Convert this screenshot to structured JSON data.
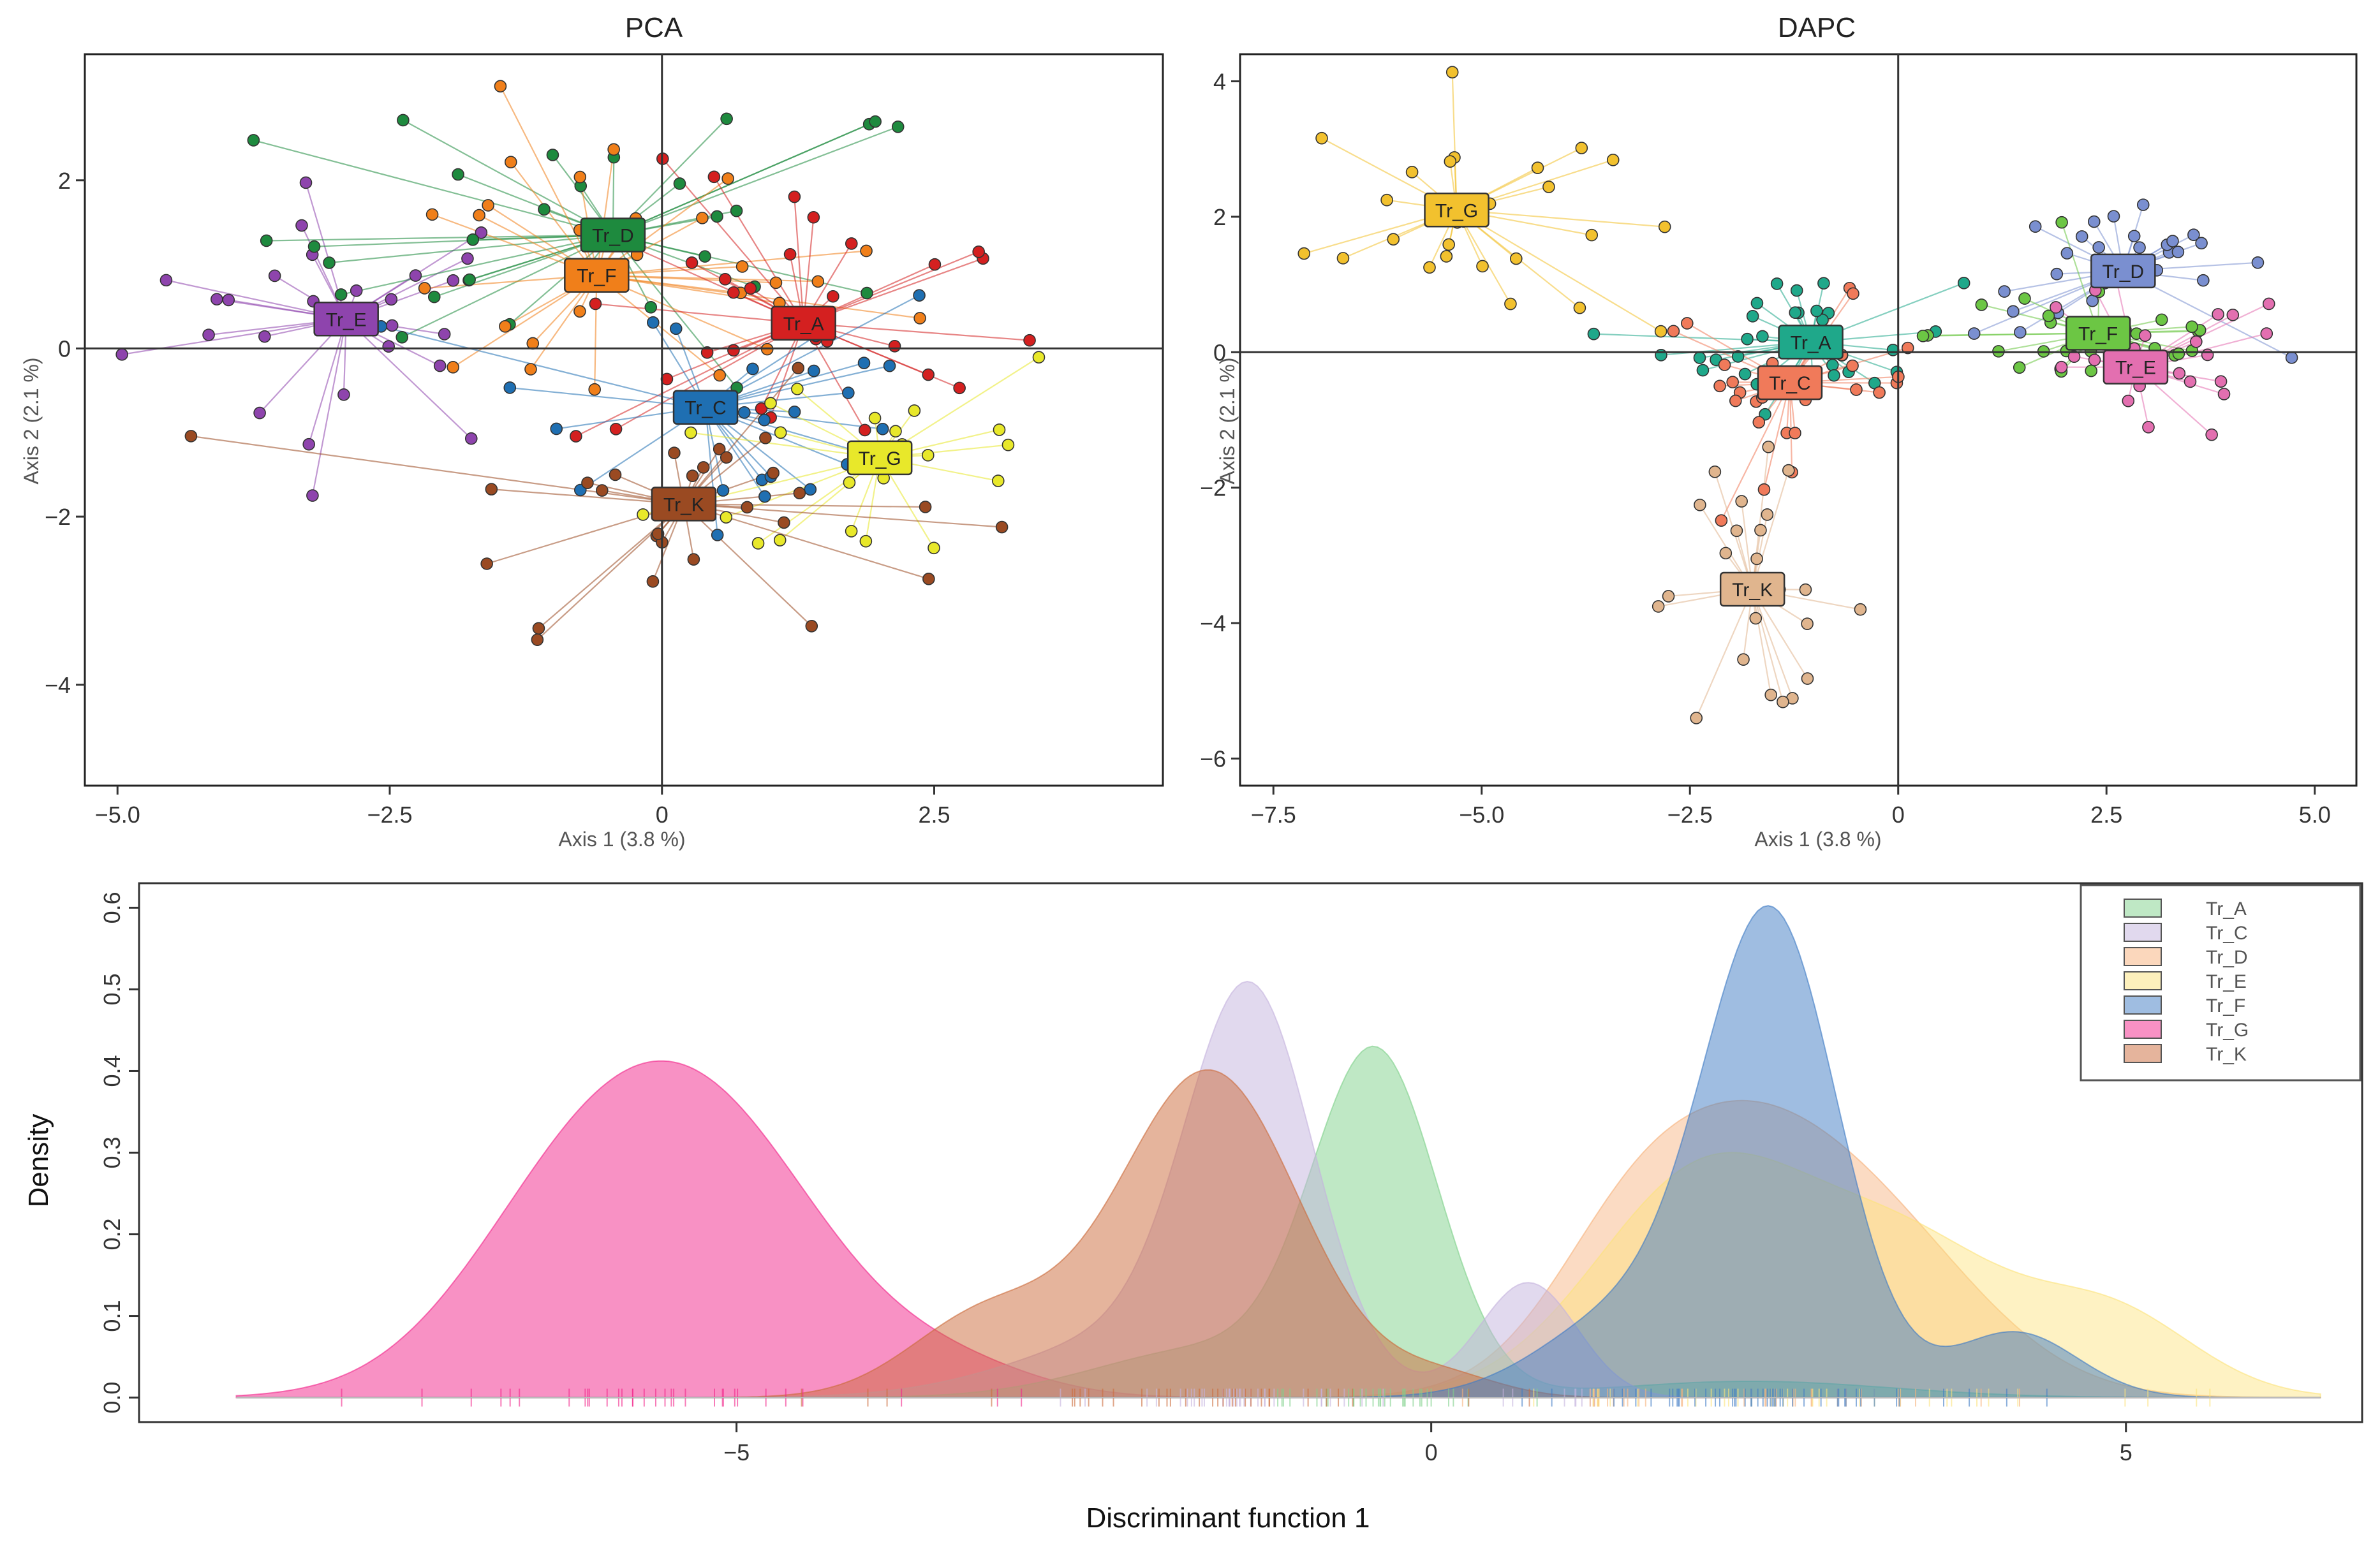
{
  "chart_data": [
    {
      "type": "scatter",
      "title": "PCA",
      "xlabel": "Axis 1 (3.8 %)",
      "ylabel": "Axis 2 (2.1 %)",
      "xlim": [
        -5.3,
        4.6
      ],
      "ylim": [
        -5.2,
        3.5
      ],
      "xticks": [
        -5.0,
        -2.5,
        0,
        2.5
      ],
      "xtick_labels": [
        "−5.0",
        "−2.5",
        "0",
        "2.5"
      ],
      "yticks": [
        2,
        0,
        -2,
        -4
      ],
      "ytick_labels": [
        "2",
        "0",
        "−2",
        "−4"
      ],
      "groups": [
        {
          "name": "Tr_E",
          "label": "Tr_E",
          "color": "#8e44ad",
          "centroid": [
            -2.9,
            0.35
          ],
          "n": 28,
          "spread": [
            1.0,
            0.8
          ]
        },
        {
          "name": "Tr_D",
          "label": "Tr_D",
          "color": "#1e8a3e",
          "centroid": [
            -0.45,
            1.35
          ],
          "n": 30,
          "spread": [
            1.6,
            0.9
          ]
        },
        {
          "name": "Tr_F",
          "label": "Tr_F",
          "color": "#f07f1a",
          "centroid": [
            -0.6,
            0.87
          ],
          "n": 30,
          "spread": [
            1.4,
            0.9
          ]
        },
        {
          "name": "Tr_A",
          "label": "Tr_A",
          "color": "#d42020",
          "centroid": [
            1.3,
            0.3
          ],
          "n": 30,
          "spread": [
            1.1,
            0.9
          ]
        },
        {
          "name": "Tr_C",
          "label": "Tr_C",
          "color": "#1f6fb2",
          "centroid": [
            0.4,
            -0.7
          ],
          "n": 25,
          "spread": [
            1.3,
            0.9
          ]
        },
        {
          "name": "Tr_G",
          "label": "Tr_G",
          "color": "#e8e82a",
          "centroid": [
            2.0,
            -1.3
          ],
          "n": 25,
          "spread": [
            1.0,
            0.8
          ]
        },
        {
          "name": "Tr_K",
          "label": "Tr_K",
          "color": "#9a4a22",
          "centroid": [
            0.2,
            -1.85
          ],
          "n": 28,
          "spread": [
            1.3,
            0.7
          ]
        }
      ]
    },
    {
      "type": "scatter",
      "title": "DAPC",
      "xlabel": "Axis 1 (3.8 %)",
      "ylabel": "Axis 2 (2.1 %)",
      "xlim": [
        -7.9,
        5.5
      ],
      "ylim": [
        -6.4,
        4.4
      ],
      "xticks": [
        -7.5,
        -5.0,
        -2.5,
        0,
        2.5,
        5.0
      ],
      "xtick_labels": [
        "−7.5",
        "−5.0",
        "−2.5",
        "0",
        "2.5",
        "5.0"
      ],
      "yticks": [
        4,
        2,
        0,
        -2,
        -4,
        -6
      ],
      "ytick_labels": [
        "4",
        "2",
        "0",
        "−2",
        "−4",
        "−6"
      ],
      "groups": [
        {
          "name": "Tr_G",
          "label": "Tr_G",
          "color": "#f2c12e",
          "centroid": [
            -5.3,
            2.1
          ],
          "n": 28,
          "spread": [
            0.9,
            0.9
          ]
        },
        {
          "name": "Tr_A",
          "label": "Tr_A",
          "color": "#1fa88a",
          "centroid": [
            -1.05,
            0.15
          ],
          "n": 35,
          "spread": [
            0.9,
            0.5
          ]
        },
        {
          "name": "Tr_C",
          "label": "Tr_C",
          "color": "#f07a5a",
          "centroid": [
            -1.3,
            -0.45
          ],
          "n": 30,
          "spread": [
            0.8,
            0.6
          ]
        },
        {
          "name": "Tr_K",
          "label": "Tr_K",
          "color": "#e0b58e",
          "centroid": [
            -1.75,
            -3.5
          ],
          "n": 25,
          "spread": [
            0.7,
            0.9
          ]
        },
        {
          "name": "Tr_D",
          "label": "Tr_D",
          "color": "#7a8fd0",
          "centroid": [
            2.7,
            1.2
          ],
          "n": 28,
          "spread": [
            0.9,
            0.5
          ]
        },
        {
          "name": "Tr_F",
          "label": "Tr_F",
          "color": "#6cc644",
          "centroid": [
            2.4,
            0.28
          ],
          "n": 30,
          "spread": [
            1.0,
            0.5
          ]
        },
        {
          "name": "Tr_E",
          "label": "Tr_E",
          "color": "#e36fb0",
          "centroid": [
            2.85,
            -0.22
          ],
          "n": 28,
          "spread": [
            1.0,
            0.6
          ]
        }
      ]
    },
    {
      "type": "area",
      "title": "",
      "xlabel": "Discriminant function 1",
      "ylabel": "Density",
      "xlim": [
        -9.3,
        6.7
      ],
      "ylim": [
        -0.03,
        0.63
      ],
      "xticks": [
        -5,
        0,
        5
      ],
      "xtick_labels": [
        "−5",
        "0",
        "5"
      ],
      "yticks": [
        0.0,
        0.1,
        0.2,
        0.3,
        0.4,
        0.5,
        0.6
      ],
      "ytick_labels": [
        "0.0",
        "0.1",
        "0.2",
        "0.3",
        "0.4",
        "0.5",
        "0.6"
      ],
      "legend_position": "top-right",
      "series": [
        {
          "name": "Tr_A",
          "label": "Tr_A",
          "color": "#7fd18b",
          "fill_alpha": 0.5,
          "components": [
            [
              -0.4,
              0.45,
              0.41
            ],
            [
              -1.6,
              0.8,
              0.06
            ],
            [
              2.3,
              1.0,
              0.02
            ]
          ]
        },
        {
          "name": "Tr_C",
          "label": "Tr_C",
          "color": "#c4b3dd",
          "fill_alpha": 0.5,
          "components": [
            [
              -1.3,
              0.45,
              0.45
            ],
            [
              -2.0,
              0.9,
              0.08
            ],
            [
              0.7,
              0.35,
              0.14
            ]
          ]
        },
        {
          "name": "Tr_D",
          "label": "Tr_D",
          "color": "#f7b07a",
          "fill_alpha": 0.45,
          "components": [
            [
              2.0,
              0.8,
              0.28
            ],
            [
              3.2,
              0.8,
              0.18
            ],
            [
              1.3,
              0.5,
              0.05
            ]
          ]
        },
        {
          "name": "Tr_E",
          "label": "Tr_E",
          "color": "#fce27a",
          "fill_alpha": 0.45,
          "components": [
            [
              2.0,
              0.8,
              0.28
            ],
            [
              3.5,
              0.7,
              0.16
            ],
            [
              4.9,
              0.6,
              0.1
            ]
          ]
        },
        {
          "name": "Tr_F",
          "label": "Tr_F",
          "color": "#3f7bc4",
          "fill_alpha": 0.5,
          "components": [
            [
              2.45,
              0.48,
              0.58
            ],
            [
              1.4,
              0.6,
              0.1
            ],
            [
              4.2,
              0.45,
              0.08
            ]
          ]
        },
        {
          "name": "Tr_G",
          "label": "Tr_G",
          "color": "#f2248a",
          "fill_alpha": 0.5,
          "components": [
            [
              -5.15,
              0.85,
              0.3
            ],
            [
              -6.2,
              0.8,
              0.2
            ],
            [
              -3.4,
              0.6,
              0.03
            ]
          ]
        },
        {
          "name": "Tr_K",
          "label": "Tr_K",
          "color": "#cc6a3a",
          "fill_alpha": 0.5,
          "components": [
            [
              -1.6,
              0.65,
              0.4
            ],
            [
              -3.2,
              0.55,
              0.1
            ],
            [
              0.1,
              0.4,
              0.025
            ]
          ]
        }
      ]
    }
  ]
}
